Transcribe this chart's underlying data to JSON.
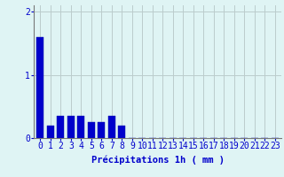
{
  "categories": [
    0,
    1,
    2,
    3,
    4,
    5,
    6,
    7,
    8,
    9,
    10,
    11,
    12,
    13,
    14,
    15,
    16,
    17,
    18,
    19,
    20,
    21,
    22,
    23
  ],
  "values": [
    1.6,
    0.2,
    0.35,
    0.35,
    0.35,
    0.25,
    0.25,
    0.35,
    0.2,
    0.0,
    0.0,
    0.0,
    0.0,
    0.0,
    0.0,
    0.0,
    0.0,
    0.0,
    0.0,
    0.0,
    0.0,
    0.0,
    0.0,
    0.0
  ],
  "bar_color": "#0000cc",
  "bar_edge_color": "#0000aa",
  "background_color": "#dff4f4",
  "grid_color": "#bbcccc",
  "text_color": "#0000cc",
  "xlabel": "Précipitations 1h ( mm )",
  "ylim": [
    0,
    2.1
  ],
  "yticks": [
    0,
    1,
    2
  ],
  "xlabel_fontsize": 7.5,
  "tick_fontsize": 7
}
